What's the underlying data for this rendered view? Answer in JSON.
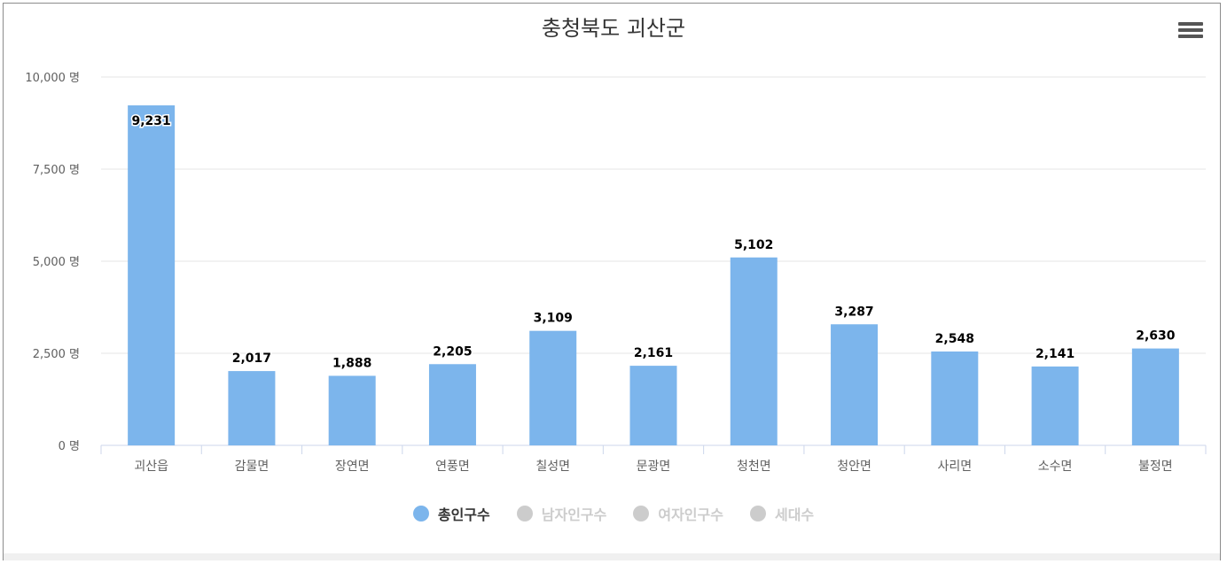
{
  "title": "충청북도 괴산군",
  "colors": {
    "bar": "#7cb5ec",
    "hidden": "#cccccc",
    "active_text": "#333333",
    "hidden_text": "#cccccc"
  },
  "legend": [
    {
      "label": "총인구수",
      "active": true
    },
    {
      "label": "남자인구수",
      "active": false
    },
    {
      "label": "여자인구수",
      "active": false
    },
    {
      "label": "세대수",
      "active": false
    }
  ],
  "chart_data": {
    "type": "bar",
    "title": "충청북도 괴산군",
    "categories": [
      "괴산읍",
      "감물면",
      "장연면",
      "연풍면",
      "칠성면",
      "문광면",
      "청천면",
      "청안면",
      "사리면",
      "소수면",
      "불정면"
    ],
    "series": [
      {
        "name": "총인구수",
        "values": [
          9231,
          2017,
          1888,
          2205,
          3109,
          2161,
          5102,
          3287,
          2548,
          2141,
          2630
        ]
      }
    ],
    "data_labels": [
      "9,231",
      "2,017",
      "1,888",
      "2,205",
      "3,109",
      "2,161",
      "5,102",
      "3,287",
      "2,548",
      "2,141",
      "2,630"
    ],
    "yticks": [
      "0 명",
      "2,500 명",
      "5,000 명",
      "7,500 명",
      "10,000 명"
    ],
    "ylim": [
      0,
      10000
    ],
    "grid": true,
    "legend_position": "bottom-center"
  }
}
